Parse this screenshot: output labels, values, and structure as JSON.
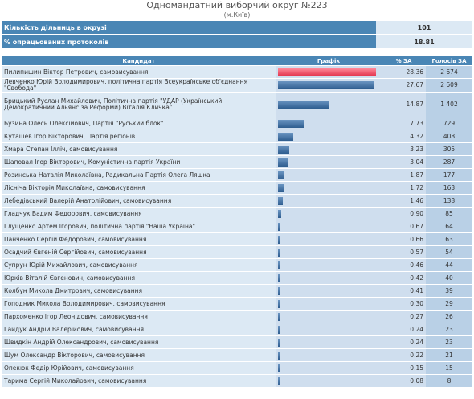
{
  "header": {
    "title": "Одномандатний виборчий округ №223",
    "subtitle": "(м.Київ)"
  },
  "summary": [
    {
      "label": "Кількість дільниць в окрузі",
      "value": "101"
    },
    {
      "label": "% опрацьованих протоколів",
      "value": "18.81"
    }
  ],
  "table": {
    "headers": {
      "candidate": "Кандидат",
      "chart": "Графік",
      "percent": "% ЗА",
      "votes": "Голосів ЗА"
    },
    "bar_colors": {
      "leader": "#e0304a",
      "default": "#2e5d8f"
    },
    "rows": [
      {
        "name": "Пилипишин Віктор Петрович, самовисування",
        "percent": "28.36",
        "votes": "2 674"
      },
      {
        "name": "Левченко Юрій Володимирович, політична партія Всеукраїнське об'єднання \"Свобода\"",
        "percent": "27.67",
        "votes": "2 609"
      },
      {
        "name": "Брицький Руслан Михайлович, Політична партія \"УДАР (Український Демократичний Альянс за Реформи) Віталія Кличка\"",
        "percent": "14.87",
        "votes": "1 402"
      },
      {
        "name": "Бузина Олесь Олексійович, Партія \"Руський блок\"",
        "percent": "7.73",
        "votes": "729"
      },
      {
        "name": "Куташев Ігор Вікторович, Партія регіонів",
        "percent": "4.32",
        "votes": "408"
      },
      {
        "name": "Хмара Степан Ілліч, самовисування",
        "percent": "3.23",
        "votes": "305"
      },
      {
        "name": "Шаповал Ігор Вікторович, Комуністична партія України",
        "percent": "3.04",
        "votes": "287"
      },
      {
        "name": "Розинська Наталія Миколаївна, Радикальна Партія Олега Ляшка",
        "percent": "1.87",
        "votes": "177"
      },
      {
        "name": "Лісніча Вікторія Миколаївна, самовисування",
        "percent": "1.72",
        "votes": "163"
      },
      {
        "name": "Лебедівський Валерій Анатолійович, самовисування",
        "percent": "1.46",
        "votes": "138"
      },
      {
        "name": "Гладчук Вадим Федорович, самовисування",
        "percent": "0.90",
        "votes": "85"
      },
      {
        "name": "Глущенко Артем Ігорович, політична партія \"Наша Україна\"",
        "percent": "0.67",
        "votes": "64"
      },
      {
        "name": "Панченко Сергій Федорович, самовисування",
        "percent": "0.66",
        "votes": "63"
      },
      {
        "name": "Осадчий Євгеній Сергійович, самовисування",
        "percent": "0.57",
        "votes": "54"
      },
      {
        "name": "Супрун Юрій Михайлович, самовисування",
        "percent": "0.46",
        "votes": "44"
      },
      {
        "name": "Юрків Віталій Євгенович, самовисування",
        "percent": "0.42",
        "votes": "40"
      },
      {
        "name": "Колбун Микола Дмитрович, самовисування",
        "percent": "0.41",
        "votes": "39"
      },
      {
        "name": "Гоподник Микола Володимирович, самовисування",
        "percent": "0.30",
        "votes": "29"
      },
      {
        "name": "Пархоменко Ігор Леонідович, самовисування",
        "percent": "0.27",
        "votes": "26"
      },
      {
        "name": "Гайдук Андрій Валерійович, самовисування",
        "percent": "0.24",
        "votes": "23"
      },
      {
        "name": "Швидкін Андрій Олександрович, самовисування",
        "percent": "0.24",
        "votes": "23"
      },
      {
        "name": "Шум Олександр Вікторович, самовисування",
        "percent": "0.22",
        "votes": "21"
      },
      {
        "name": "Опекюк Федір Юрійович, самовисування",
        "percent": "0.15",
        "votes": "15"
      },
      {
        "name": "Тарима Сергій Миколайович, самовисування",
        "percent": "0.08",
        "votes": "8"
      }
    ]
  }
}
